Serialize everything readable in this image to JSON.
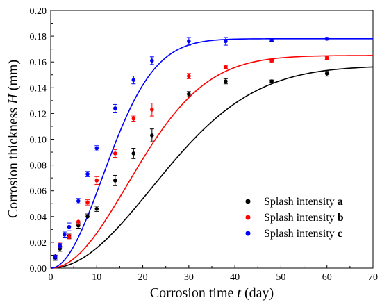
{
  "chart_data": {
    "type": "scatter",
    "xlabel_prefix": "Corrosion time ",
    "xlabel_var": "t",
    "xlabel_suffix": " (day)",
    "ylabel_prefix": "Corrosion thickness ",
    "ylabel_var": "H",
    "ylabel_suffix": " (mm)",
    "xlim": [
      0,
      70
    ],
    "ylim": [
      0,
      0.2
    ],
    "xticks": [
      "0",
      "10",
      "20",
      "30",
      "40",
      "50",
      "60",
      "70"
    ],
    "yticks": [
      "0.00",
      "0.02",
      "0.04",
      "0.06",
      "0.08",
      "0.10",
      "0.12",
      "0.14",
      "0.16",
      "0.18",
      "0.20"
    ],
    "grid": false,
    "legend_position": "bottom-right",
    "legend_prefix": "Splash intensity ",
    "series": [
      {
        "name": "a",
        "color": "#000000",
        "x": [
          1,
          2,
          4,
          6,
          8,
          10,
          14,
          18,
          22,
          30,
          38,
          48,
          60
        ],
        "y": [
          0.008,
          0.015,
          0.025,
          0.033,
          0.04,
          0.046,
          0.068,
          0.089,
          0.103,
          0.135,
          0.145,
          0.145,
          0.151
        ],
        "err": [
          0.002,
          0.002,
          0.002,
          0.002,
          0.002,
          0.002,
          0.004,
          0.004,
          0.005,
          0.002,
          0.002,
          0.001,
          0.002
        ],
        "fit": {
          "a": 0.157,
          "k": 0.00105
        }
      },
      {
        "name": "b",
        "color": "#ff0000",
        "x": [
          1,
          2,
          4,
          6,
          8,
          10,
          14,
          18,
          22,
          30,
          38,
          48,
          60
        ],
        "y": [
          0.009,
          0.018,
          0.024,
          0.036,
          0.051,
          0.068,
          0.089,
          0.116,
          0.123,
          0.149,
          0.156,
          0.161,
          0.163
        ],
        "err": [
          0.002,
          0.002,
          0.002,
          0.002,
          0.002,
          0.003,
          0.003,
          0.002,
          0.005,
          0.002,
          0.001,
          0.001,
          0.001
        ],
        "fit": {
          "a": 0.165,
          "k": 0.0018
        }
      },
      {
        "name": "c",
        "color": "#0000ff",
        "x": [
          1,
          2,
          3,
          4,
          6,
          8,
          10,
          14,
          18,
          22,
          30,
          38,
          48,
          60
        ],
        "y": [
          0.009,
          0.017,
          0.026,
          0.032,
          0.052,
          0.073,
          0.093,
          0.124,
          0.146,
          0.161,
          0.176,
          0.176,
          0.177,
          0.178
        ],
        "err": [
          0.002,
          0.002,
          0.002,
          0.003,
          0.002,
          0.002,
          0.002,
          0.003,
          0.003,
          0.003,
          0.003,
          0.003,
          0.001,
          0.001
        ],
        "fit": {
          "a": 0.178,
          "k": 0.004
        }
      }
    ]
  }
}
